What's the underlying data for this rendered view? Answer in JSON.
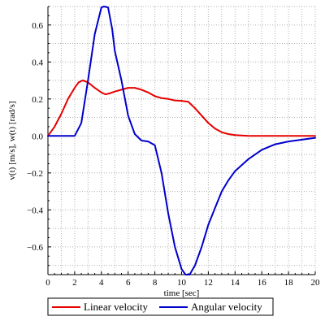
{
  "chart_data": {
    "type": "line",
    "xlabel": "time [sec]",
    "ylabel": "v(t) [m/s], w(t) [rad/s]",
    "xlim": [
      0,
      20
    ],
    "ylim": [
      -0.75,
      0.7
    ],
    "xticks": [
      0,
      2,
      4,
      6,
      8,
      10,
      12,
      14,
      16,
      18,
      20
    ],
    "yticks": [
      -0.6,
      -0.4,
      -0.2,
      0.0,
      0.2,
      0.4,
      0.6
    ],
    "xtick_labels": [
      "0",
      "2",
      "4",
      "6",
      "8",
      "10",
      "12",
      "14",
      "16",
      "18",
      "20"
    ],
    "ytick_labels": [
      "−0.6",
      "−0.4",
      "−0.2",
      "0.0",
      "0.2",
      "0.4",
      "0.6"
    ],
    "grid": true,
    "legend_position": "bottom",
    "series": [
      {
        "name": "Linear velocity",
        "color": "#e60000",
        "x": [
          0,
          0.5,
          1,
          1.5,
          2,
          2.3,
          2.6,
          3,
          3.5,
          4,
          4.3,
          4.6,
          5,
          5.5,
          6,
          6.5,
          7,
          7.5,
          8,
          8.5,
          9,
          9.5,
          10,
          10.5,
          11,
          11.5,
          12,
          12.5,
          13,
          13.5,
          14,
          15,
          16,
          17,
          18,
          19,
          20
        ],
        "y": [
          0,
          0.05,
          0.12,
          0.2,
          0.26,
          0.29,
          0.3,
          0.29,
          0.26,
          0.235,
          0.225,
          0.23,
          0.24,
          0.25,
          0.26,
          0.26,
          0.25,
          0.235,
          0.215,
          0.205,
          0.2,
          0.192,
          0.19,
          0.185,
          0.15,
          0.11,
          0.07,
          0.04,
          0.02,
          0.01,
          0.005,
          0.0,
          0.0,
          0.0,
          0.0,
          0.0,
          0.0
        ]
      },
      {
        "name": "Angular velocity",
        "color": "#0000cc",
        "x": [
          0,
          1,
          2,
          2.5,
          3,
          3.5,
          4,
          4.2,
          4.5,
          4.8,
          5,
          5.5,
          6,
          6.5,
          7,
          7.5,
          8,
          8.5,
          9,
          9.5,
          10,
          10.3,
          10.6,
          11,
          11.5,
          12,
          12.5,
          13,
          13.5,
          14,
          15,
          16,
          17,
          18,
          19,
          20
        ],
        "y": [
          0,
          0,
          0,
          0.07,
          0.3,
          0.55,
          0.695,
          0.7,
          0.695,
          0.58,
          0.46,
          0.3,
          0.11,
          0.01,
          -0.025,
          -0.03,
          -0.05,
          -0.2,
          -0.42,
          -0.6,
          -0.72,
          -0.75,
          -0.75,
          -0.7,
          -0.6,
          -0.48,
          -0.39,
          -0.3,
          -0.24,
          -0.19,
          -0.125,
          -0.075,
          -0.045,
          -0.03,
          -0.02,
          -0.01
        ]
      }
    ]
  }
}
